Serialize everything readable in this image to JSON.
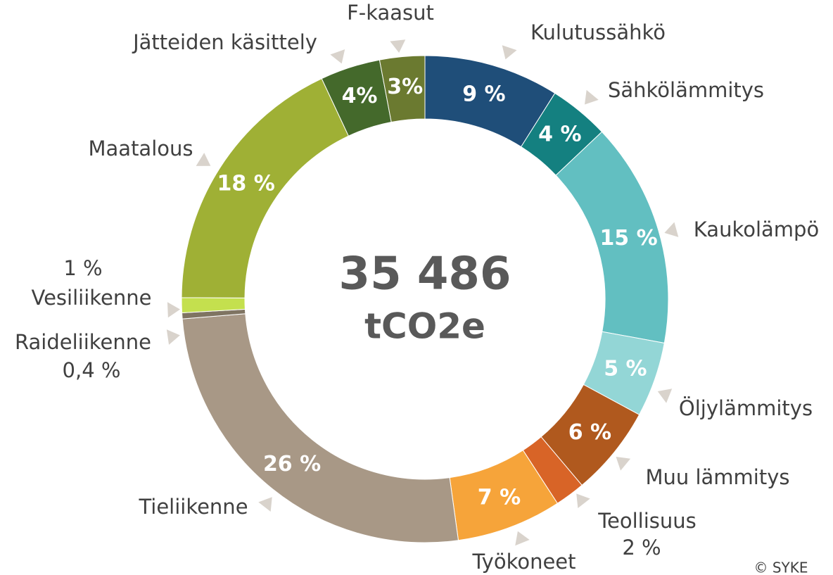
{
  "chart_data": {
    "type": "donut",
    "categories": [
      "Kulutussähkö",
      "Sähkölämmitys",
      "Kaukolämpö",
      "Öljylämmitys",
      "Muu lämmitys",
      "Teollisuus",
      "Työkoneet",
      "Tieliikenne",
      "Raideliikenne",
      "Vesiliikenne",
      "Maatalous",
      "Jätteiden käsittely",
      "F-kaasut"
    ],
    "values": [
      9,
      4,
      15,
      5,
      6,
      2,
      7,
      26,
      0.4,
      1,
      18,
      4,
      3
    ],
    "value_labels": [
      "9 %",
      "4 %",
      "15 %",
      "5 %",
      "6 %",
      "2 %",
      "7 %",
      "26 %",
      "0,4 %",
      "1 %",
      "18 %",
      "4%",
      "3%"
    ],
    "colors": [
      "#1f4e79",
      "#148080",
      "#62bfc1",
      "#93d6d6",
      "#b0591e",
      "#d86427",
      "#f6a43a",
      "#a89886",
      "#7f7462",
      "#c4e04e",
      "#9fb035",
      "#44692b",
      "#6b7a30"
    ],
    "center_value": "35 486",
    "center_unit": "tCO2e",
    "credit": "© SYKE"
  }
}
